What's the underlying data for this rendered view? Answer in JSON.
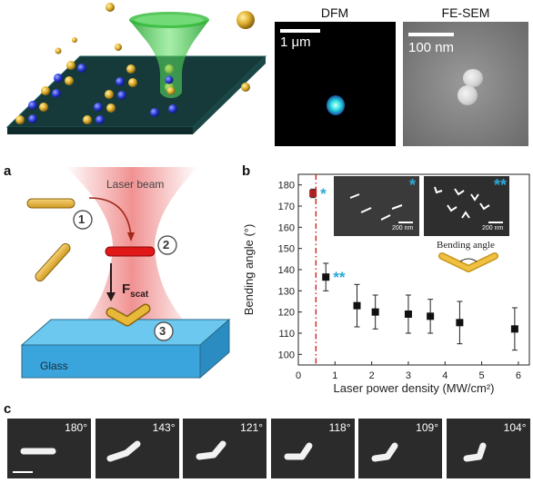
{
  "top": {
    "dfm_title": "DFM",
    "dfm_scale": "1 μm",
    "sem_title": "FE-SEM",
    "sem_scale": "100 nm"
  },
  "panel_a": {
    "letter": "a",
    "laser_label": "Laser beam",
    "step1": "1",
    "step2": "2",
    "step3": "3",
    "force_label": "F",
    "force_sub": "scat",
    "glass_label": "Glass"
  },
  "panel_b": {
    "letter": "b",
    "inset1_scale": "200 nm",
    "inset2_scale": "200 nm",
    "inset1_mark": "*",
    "inset2_mark": "**",
    "bending_label": "Bending angle"
  },
  "panel_c": {
    "letter": "c",
    "frames": [
      "180°",
      "143°",
      "121°",
      "118°",
      "109°",
      "104°"
    ]
  },
  "chart_data": {
    "type": "scatter",
    "xlabel": "Laser power density (MW/cm²)",
    "ylabel": "Bending angle (°)",
    "xlim": [
      0,
      6.3
    ],
    "ylim": [
      95,
      185
    ],
    "xticks": [
      0,
      1,
      2,
      3,
      4,
      5,
      6
    ],
    "yticks": [
      100,
      110,
      120,
      130,
      140,
      150,
      160,
      170,
      180
    ],
    "threshold_x": 0.48,
    "points": [
      {
        "x": 0.4,
        "y": 176,
        "err": 2,
        "color": "#b02020",
        "mark": "*"
      },
      {
        "x": 0.75,
        "y": 136.5,
        "err": 6.5,
        "color": "#111111",
        "mark": "**"
      },
      {
        "x": 1.6,
        "y": 123,
        "err": 10
      },
      {
        "x": 2.1,
        "y": 120,
        "err": 8
      },
      {
        "x": 3.0,
        "y": 119,
        "err": 9
      },
      {
        "x": 3.6,
        "y": 118,
        "err": 8
      },
      {
        "x": 4.4,
        "y": 115,
        "err": 10
      },
      {
        "x": 5.9,
        "y": 112,
        "err": 10
      }
    ],
    "mark_color": "#2aa8d8",
    "threshold_color": "#cc2222"
  }
}
